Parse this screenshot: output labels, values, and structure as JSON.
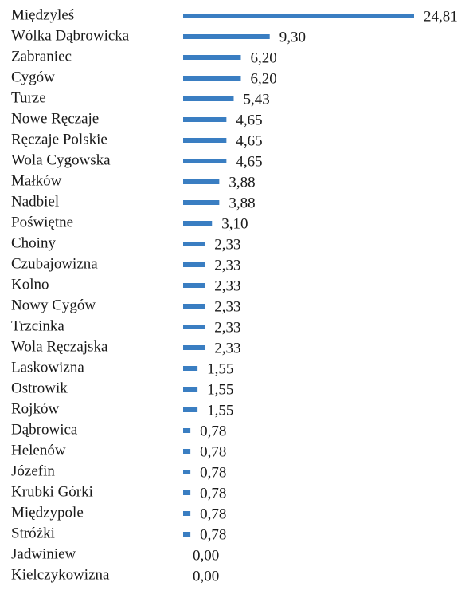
{
  "chart_data": {
    "type": "bar",
    "orientation": "horizontal",
    "color": "#3a7ec2",
    "categories": [
      "Międzyleś",
      "Wólka Dąbrowicka",
      "Zabraniec",
      "Cygów",
      "Turze",
      "Nowe Ręczaje",
      "Ręczaje Polskie",
      "Wola Cygowska",
      "Małków",
      "Nadbiel",
      "Poświętne",
      "Choiny",
      "Czubajowizna",
      "Kolno",
      "Nowy Cygów",
      "Trzcinka",
      "Wola Ręczajska",
      "Laskowizna",
      "Ostrowik",
      "Rojków",
      "Dąbrowica",
      "Helenów",
      "Józefin",
      "Krubki Górki",
      "Międzypole",
      "Stróżki",
      "Jadwiniew",
      "Kielczykowizna"
    ],
    "values": [
      24.81,
      9.3,
      6.2,
      6.2,
      5.43,
      4.65,
      4.65,
      4.65,
      3.88,
      3.88,
      3.1,
      2.33,
      2.33,
      2.33,
      2.33,
      2.33,
      2.33,
      1.55,
      1.55,
      1.55,
      0.78,
      0.78,
      0.78,
      0.78,
      0.78,
      0.78,
      0.0,
      0.0
    ],
    "value_labels": [
      "24,81",
      "9,30",
      "6,20",
      "6,20",
      "5,43",
      "4,65",
      "4,65",
      "4,65",
      "3,88",
      "3,88",
      "3,10",
      "2,33",
      "2,33",
      "2,33",
      "2,33",
      "2,33",
      "2,33",
      "1,55",
      "1,55",
      "1,55",
      "0,78",
      "0,78",
      "0,78",
      "0,78",
      "0,78",
      "0,78",
      "0,00",
      "0,00"
    ]
  }
}
